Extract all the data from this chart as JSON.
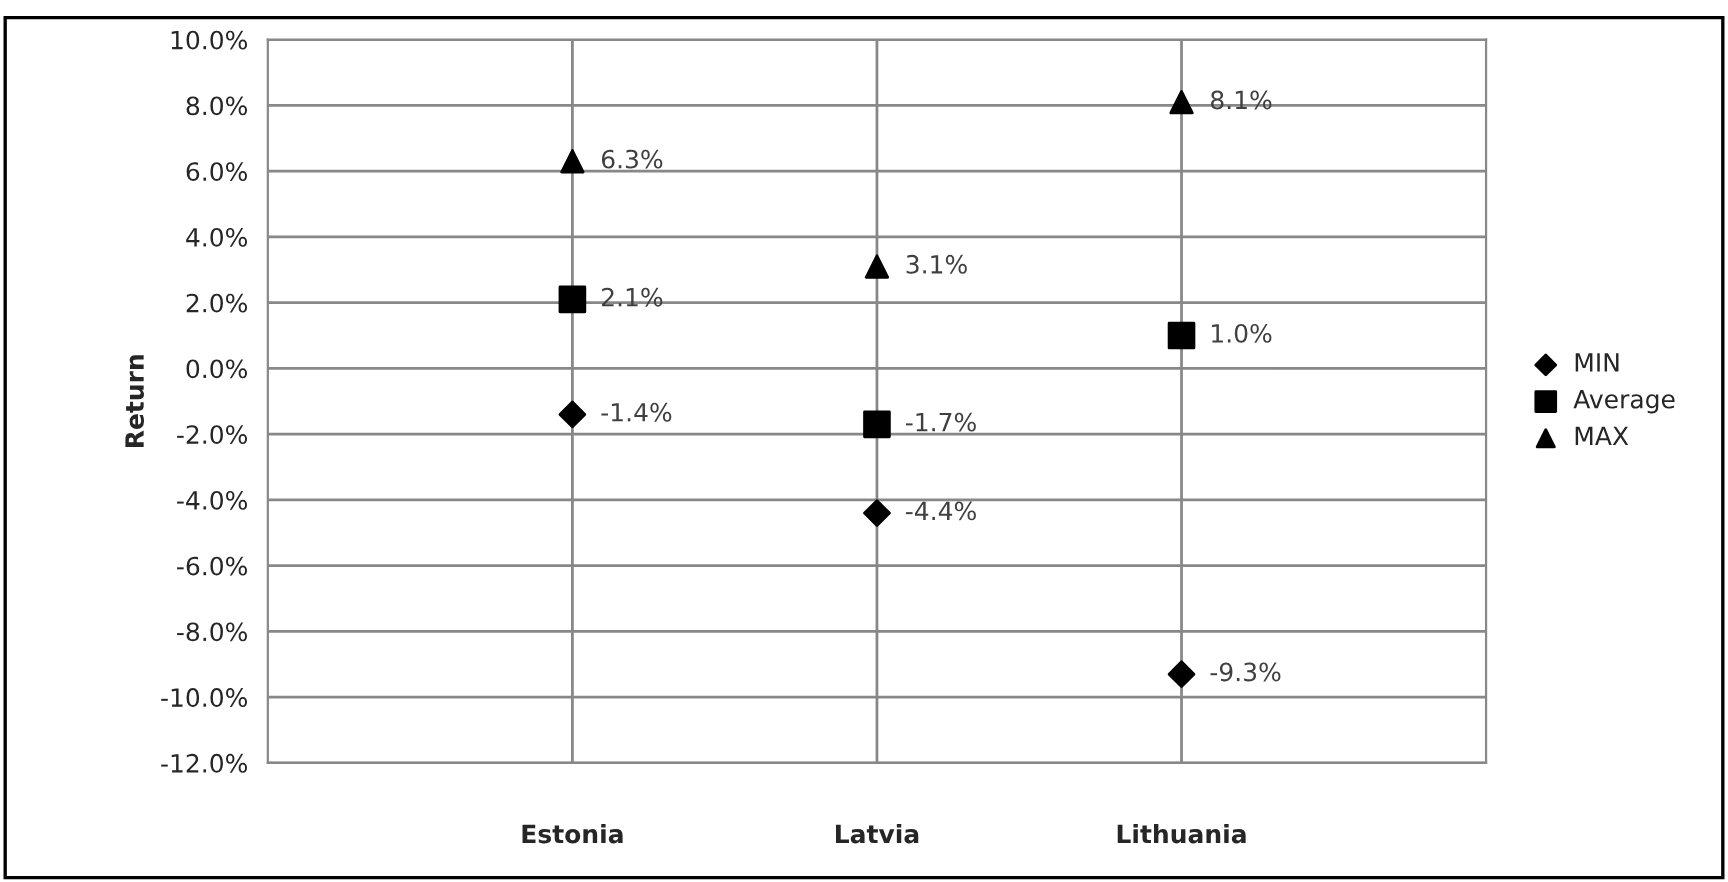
{
  "chart_data": {
    "type": "scatter",
    "ylabel": "Return",
    "categories": [
      "Estonia",
      "Latvia",
      "Lithuania"
    ],
    "series": [
      {
        "name": "MIN",
        "color": "#000000",
        "marker": "diamond",
        "values": [
          -1.4,
          -4.4,
          -9.3
        ],
        "value_labels": [
          "-1.4%",
          "-4.4%",
          "-9.3%"
        ]
      },
      {
        "name": "Average",
        "color": "#000000",
        "marker": "square",
        "values": [
          2.1,
          -1.7,
          1.0
        ],
        "value_labels": [
          "2.1%",
          "-1.7%",
          "1.0%"
        ]
      },
      {
        "name": "MAX",
        "color": "#000000",
        "marker": "triangle",
        "values": [
          6.3,
          3.1,
          8.1
        ],
        "value_labels": [
          "6.3%",
          "3.1%",
          "8.1%"
        ]
      }
    ],
    "ylim": [
      -12,
      10
    ],
    "yticks": [
      {
        "value": -12,
        "label": "-12.0%"
      },
      {
        "value": -10,
        "label": "-10.0%"
      },
      {
        "value": -8,
        "label": "-8.0%"
      },
      {
        "value": -6,
        "label": "-6.0%"
      },
      {
        "value": -4,
        "label": "-4.0%"
      },
      {
        "value": -2,
        "label": "-2.0%"
      },
      {
        "value": 0,
        "label": "0.0%"
      },
      {
        "value": 2,
        "label": "2.0%"
      },
      {
        "value": 4,
        "label": "4.0%"
      },
      {
        "value": 6,
        "label": "6.0%"
      },
      {
        "value": 8,
        "label": "8.0%"
      },
      {
        "value": 10,
        "label": "10.0%"
      }
    ],
    "grid": true,
    "legend": "right"
  }
}
